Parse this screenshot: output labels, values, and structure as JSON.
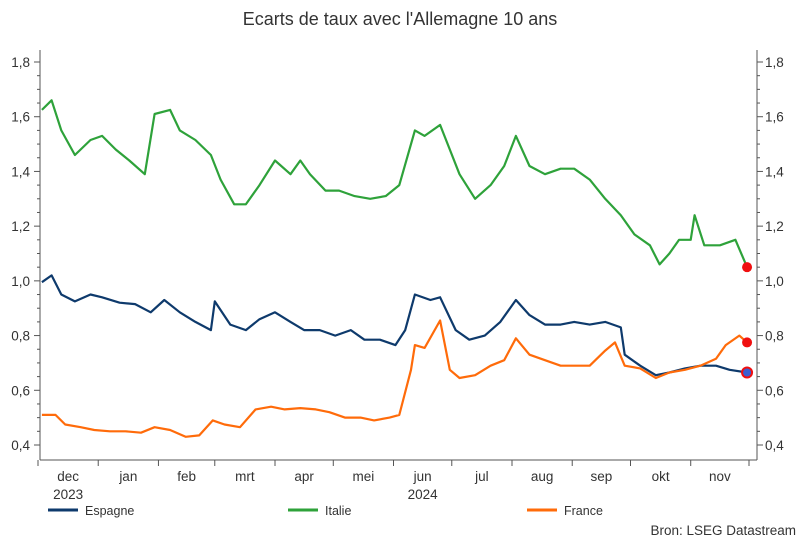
{
  "chart_data": {
    "type": "line",
    "title": "Ecarts de taux avec l'Allemagne 10 ans",
    "source": "Bron: LSEG Datastream",
    "ylim": [
      0.4,
      1.8
    ],
    "yticks": [
      "0,4",
      "0,6",
      "0,8",
      "1,0",
      "1,2",
      "1,4",
      "1,6",
      "1,8"
    ],
    "yticks_values": [
      0.4,
      0.6,
      0.8,
      1.0,
      1.2,
      1.4,
      1.6,
      1.8
    ],
    "xlim": [
      "2023-12-01",
      "2024-12-01"
    ],
    "month_labels": [
      "dec",
      "jan",
      "feb",
      "mrt",
      "apr",
      "mei",
      "jun",
      "jul",
      "aug",
      "sep",
      "okt",
      "nov"
    ],
    "year_labels": [
      {
        "label": "2023",
        "month": "dec"
      },
      {
        "label": "2024",
        "month": "jun"
      }
    ],
    "grid": false,
    "legend": "bottom",
    "series": [
      {
        "name": "Espagne",
        "color": "#0e3a6c",
        "end_marker": "red-blue",
        "points": [
          [
            "2023-12-03",
            0.995
          ],
          [
            "2023-12-08",
            1.02
          ],
          [
            "2023-12-13",
            0.95
          ],
          [
            "2023-12-20",
            0.925
          ],
          [
            "2023-12-28",
            0.95
          ],
          [
            "2024-01-03",
            0.94
          ],
          [
            "2024-01-12",
            0.92
          ],
          [
            "2024-01-20",
            0.915
          ],
          [
            "2024-01-28",
            0.885
          ],
          [
            "2024-02-04",
            0.93
          ],
          [
            "2024-02-12",
            0.885
          ],
          [
            "2024-02-20",
            0.85
          ],
          [
            "2024-02-28",
            0.82
          ],
          [
            "2024-03-01",
            0.925
          ],
          [
            "2024-03-09",
            0.84
          ],
          [
            "2024-03-17",
            0.82
          ],
          [
            "2024-03-24",
            0.86
          ],
          [
            "2024-04-01",
            0.885
          ],
          [
            "2024-04-09",
            0.85
          ],
          [
            "2024-04-16",
            0.82
          ],
          [
            "2024-04-24",
            0.82
          ],
          [
            "2024-05-02",
            0.8
          ],
          [
            "2024-05-10",
            0.82
          ],
          [
            "2024-05-17",
            0.785
          ],
          [
            "2024-05-25",
            0.785
          ],
          [
            "2024-06-02",
            0.765
          ],
          [
            "2024-06-07",
            0.82
          ],
          [
            "2024-06-12",
            0.95
          ],
          [
            "2024-06-20",
            0.93
          ],
          [
            "2024-06-25",
            0.94
          ],
          [
            "2024-07-03",
            0.82
          ],
          [
            "2024-07-10",
            0.785
          ],
          [
            "2024-07-18",
            0.8
          ],
          [
            "2024-07-26",
            0.85
          ],
          [
            "2024-08-03",
            0.93
          ],
          [
            "2024-08-10",
            0.875
          ],
          [
            "2024-08-18",
            0.84
          ],
          [
            "2024-08-26",
            0.84
          ],
          [
            "2024-09-02",
            0.85
          ],
          [
            "2024-09-10",
            0.84
          ],
          [
            "2024-09-18",
            0.85
          ],
          [
            "2024-09-26",
            0.83
          ],
          [
            "2024-09-28",
            0.73
          ],
          [
            "2024-10-06",
            0.69
          ],
          [
            "2024-10-14",
            0.655
          ],
          [
            "2024-10-21",
            0.665
          ],
          [
            "2024-10-29",
            0.68
          ],
          [
            "2024-11-06",
            0.69
          ],
          [
            "2024-11-14",
            0.69
          ],
          [
            "2024-11-21",
            0.675
          ],
          [
            "2024-11-30",
            0.665
          ]
        ]
      },
      {
        "name": "Italie",
        "color": "#2ea23a",
        "end_marker": "red",
        "points": [
          [
            "2023-12-03",
            1.625
          ],
          [
            "2023-12-08",
            1.66
          ],
          [
            "2023-12-13",
            1.55
          ],
          [
            "2023-12-20",
            1.46
          ],
          [
            "2023-12-28",
            1.515
          ],
          [
            "2024-01-03",
            1.53
          ],
          [
            "2024-01-10",
            1.48
          ],
          [
            "2024-01-17",
            1.44
          ],
          [
            "2024-01-25",
            1.39
          ],
          [
            "2024-01-30",
            1.61
          ],
          [
            "2024-02-07",
            1.625
          ],
          [
            "2024-02-12",
            1.55
          ],
          [
            "2024-02-20",
            1.515
          ],
          [
            "2024-02-28",
            1.46
          ],
          [
            "2024-03-04",
            1.37
          ],
          [
            "2024-03-11",
            1.28
          ],
          [
            "2024-03-17",
            1.28
          ],
          [
            "2024-03-24",
            1.35
          ],
          [
            "2024-04-01",
            1.44
          ],
          [
            "2024-04-09",
            1.39
          ],
          [
            "2024-04-14",
            1.44
          ],
          [
            "2024-04-19",
            1.39
          ],
          [
            "2024-04-27",
            1.33
          ],
          [
            "2024-05-04",
            1.33
          ],
          [
            "2024-05-12",
            1.31
          ],
          [
            "2024-05-20",
            1.3
          ],
          [
            "2024-05-28",
            1.31
          ],
          [
            "2024-06-04",
            1.35
          ],
          [
            "2024-06-12",
            1.55
          ],
          [
            "2024-06-17",
            1.53
          ],
          [
            "2024-06-25",
            1.57
          ],
          [
            "2024-06-30",
            1.48
          ],
          [
            "2024-07-05",
            1.39
          ],
          [
            "2024-07-13",
            1.3
          ],
          [
            "2024-07-21",
            1.35
          ],
          [
            "2024-07-28",
            1.42
          ],
          [
            "2024-08-03",
            1.53
          ],
          [
            "2024-08-10",
            1.42
          ],
          [
            "2024-08-18",
            1.39
          ],
          [
            "2024-08-26",
            1.41
          ],
          [
            "2024-09-02",
            1.41
          ],
          [
            "2024-09-10",
            1.37
          ],
          [
            "2024-09-18",
            1.3
          ],
          [
            "2024-09-26",
            1.24
          ],
          [
            "2024-10-03",
            1.17
          ],
          [
            "2024-10-11",
            1.13
          ],
          [
            "2024-10-16",
            1.06
          ],
          [
            "2024-10-21",
            1.1
          ],
          [
            "2024-10-26",
            1.15
          ],
          [
            "2024-11-01",
            1.15
          ],
          [
            "2024-11-03",
            1.24
          ],
          [
            "2024-11-08",
            1.13
          ],
          [
            "2024-11-16",
            1.13
          ],
          [
            "2024-11-24",
            1.15
          ],
          [
            "2024-11-30",
            1.05
          ]
        ]
      },
      {
        "name": "France",
        "color": "#ff6b0a",
        "end_marker": "red",
        "points": [
          [
            "2023-12-03",
            0.51
          ],
          [
            "2023-12-10",
            0.51
          ],
          [
            "2023-12-15",
            0.475
          ],
          [
            "2023-12-23",
            0.465
          ],
          [
            "2023-12-30",
            0.455
          ],
          [
            "2024-01-07",
            0.45
          ],
          [
            "2024-01-15",
            0.45
          ],
          [
            "2024-01-23",
            0.445
          ],
          [
            "2024-01-30",
            0.465
          ],
          [
            "2024-02-07",
            0.455
          ],
          [
            "2024-02-15",
            0.43
          ],
          [
            "2024-02-22",
            0.435
          ],
          [
            "2024-02-29",
            0.49
          ],
          [
            "2024-03-06",
            0.475
          ],
          [
            "2024-03-14",
            0.465
          ],
          [
            "2024-03-22",
            0.53
          ],
          [
            "2024-03-30",
            0.54
          ],
          [
            "2024-04-06",
            0.53
          ],
          [
            "2024-04-14",
            0.535
          ],
          [
            "2024-04-22",
            0.53
          ],
          [
            "2024-04-29",
            0.52
          ],
          [
            "2024-05-07",
            0.5
          ],
          [
            "2024-05-15",
            0.5
          ],
          [
            "2024-05-22",
            0.49
          ],
          [
            "2024-05-30",
            0.5
          ],
          [
            "2024-06-04",
            0.51
          ],
          [
            "2024-06-10",
            0.675
          ],
          [
            "2024-06-12",
            0.765
          ],
          [
            "2024-06-17",
            0.755
          ],
          [
            "2024-06-25",
            0.855
          ],
          [
            "2024-06-30",
            0.675
          ],
          [
            "2024-07-05",
            0.645
          ],
          [
            "2024-07-13",
            0.655
          ],
          [
            "2024-07-21",
            0.69
          ],
          [
            "2024-07-28",
            0.71
          ],
          [
            "2024-08-03",
            0.79
          ],
          [
            "2024-08-10",
            0.73
          ],
          [
            "2024-08-18",
            0.71
          ],
          [
            "2024-08-26",
            0.69
          ],
          [
            "2024-09-02",
            0.69
          ],
          [
            "2024-09-10",
            0.69
          ],
          [
            "2024-09-18",
            0.745
          ],
          [
            "2024-09-23",
            0.775
          ],
          [
            "2024-09-28",
            0.69
          ],
          [
            "2024-10-06",
            0.68
          ],
          [
            "2024-10-14",
            0.645
          ],
          [
            "2024-10-21",
            0.665
          ],
          [
            "2024-10-29",
            0.675
          ],
          [
            "2024-11-06",
            0.69
          ],
          [
            "2024-11-14",
            0.715
          ],
          [
            "2024-11-19",
            0.765
          ],
          [
            "2024-11-26",
            0.8
          ],
          [
            "2024-11-30",
            0.775
          ]
        ]
      }
    ]
  }
}
